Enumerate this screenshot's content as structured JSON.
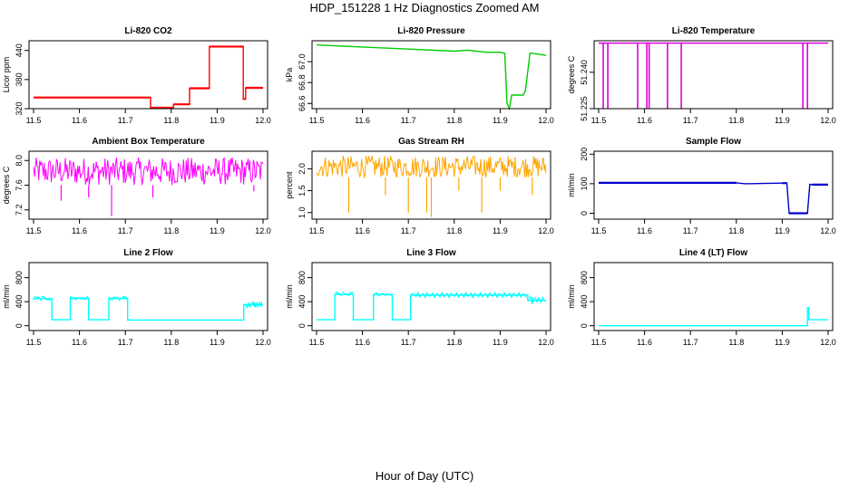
{
  "title": "HDP_151228  1 Hz Diagnostics Zoomed AM",
  "xlabel": "Hour of Day (UTC)",
  "chart_data": [
    {
      "id": "co2",
      "type": "line",
      "title": "Li-820 CO2",
      "ylabel": "Licor ppm",
      "color": "#ff0000",
      "xlim": [
        11.5,
        12.0
      ],
      "xticks": [
        11.5,
        11.6,
        11.7,
        11.8,
        11.9,
        12.0
      ],
      "xtick_labels": [
        "11.5",
        "11.6",
        "11.7",
        "11.8",
        "11.9",
        "12.0"
      ],
      "ylim": [
        320,
        460
      ],
      "yticks": [
        320,
        380,
        440
      ],
      "ytick_labels": [
        "320",
        "380",
        "440"
      ],
      "x": [
        11.5,
        11.755,
        11.755,
        11.805,
        11.805,
        11.84,
        11.84,
        11.883,
        11.883,
        11.957,
        11.957,
        11.962,
        11.962,
        12.0
      ],
      "y": [
        343,
        343,
        322,
        322,
        329,
        329,
        362,
        362,
        448,
        448,
        340,
        340,
        363,
        363
      ]
    },
    {
      "id": "pressure",
      "type": "line",
      "title": "Li-820 Pressure",
      "ylabel": "kPa",
      "color": "#00cc00",
      "xlim": [
        11.5,
        12.0
      ],
      "xticks": [
        11.5,
        11.6,
        11.7,
        11.8,
        11.9,
        12.0
      ],
      "xtick_labels": [
        "11.5",
        "11.6",
        "11.7",
        "11.8",
        "11.9",
        "12.0"
      ],
      "ylim": [
        66.55,
        67.2
      ],
      "yticks": [
        66.6,
        66.8,
        67.0
      ],
      "ytick_labels": [
        "66.6",
        "66.8",
        "67.0"
      ],
      "x": [
        11.5,
        11.55,
        11.6,
        11.7,
        11.8,
        11.83,
        11.87,
        11.9,
        11.91,
        11.915,
        11.92,
        11.925,
        11.95,
        11.955,
        11.965,
        11.97,
        12.0
      ],
      "y": [
        67.16,
        67.15,
        67.14,
        67.12,
        67.1,
        67.11,
        67.09,
        67.09,
        67.08,
        66.6,
        66.55,
        66.68,
        66.68,
        66.72,
        67.08,
        67.08,
        67.06
      ]
    },
    {
      "id": "li_temp",
      "type": "line",
      "title": "Li-820 Temperature",
      "ylabel": "degrees C",
      "color": "#dd00dd",
      "xlim": [
        11.5,
        12.0
      ],
      "xticks": [
        11.5,
        11.6,
        11.7,
        11.8,
        11.9,
        12.0
      ],
      "xtick_labels": [
        "11.5",
        "11.6",
        "11.7",
        "11.8",
        "11.9",
        "12.0"
      ],
      "ylim": [
        51.225,
        51.253
      ],
      "yticks": [
        51.225,
        51.24
      ],
      "ytick_labels": [
        "51.225",
        "51.240"
      ],
      "baseline": 51.252,
      "spikes": [
        11.51,
        11.52,
        11.585,
        11.605,
        11.61,
        11.65,
        11.68,
        11.945,
        11.955
      ]
    },
    {
      "id": "box_temp",
      "type": "noise",
      "title": "Ambient Box Temperature",
      "ylabel": "degrees C",
      "color": "#ff00ff",
      "xlim": [
        11.5,
        12.0
      ],
      "xticks": [
        11.5,
        11.6,
        11.7,
        11.8,
        11.9,
        12.0
      ],
      "xtick_labels": [
        "11.5",
        "11.6",
        "11.7",
        "11.8",
        "11.9",
        "12.0"
      ],
      "ylim": [
        7.05,
        8.15
      ],
      "yticks": [
        7.2,
        7.6,
        8.0
      ],
      "ytick_labels": [
        "7.2",
        "7.6",
        "8.0"
      ],
      "band": [
        7.6,
        8.05
      ],
      "dips": [
        [
          11.67,
          7.1
        ],
        [
          11.56,
          7.35
        ],
        [
          11.62,
          7.4
        ],
        [
          11.76,
          7.4
        ],
        [
          11.98,
          7.5
        ]
      ]
    },
    {
      "id": "rh",
      "type": "noise",
      "title": "Gas Stream RH",
      "ylabel": "percent",
      "color": "#ffa500",
      "xlim": [
        11.5,
        12.0
      ],
      "xticks": [
        11.5,
        11.6,
        11.7,
        11.8,
        11.9,
        12.0
      ],
      "xtick_labels": [
        "11.5",
        "11.6",
        "11.7",
        "11.8",
        "11.9",
        "12.0"
      ],
      "ylim": [
        0.85,
        2.4
      ],
      "yticks": [
        1.0,
        1.5,
        2.0
      ],
      "ytick_labels": [
        "1.0",
        "1.5",
        "2.0"
      ],
      "band": [
        1.8,
        2.3
      ],
      "dips": [
        [
          11.57,
          1.0
        ],
        [
          11.65,
          1.4
        ],
        [
          11.7,
          1.0
        ],
        [
          11.74,
          1.0
        ],
        [
          11.75,
          0.9
        ],
        [
          11.81,
          1.5
        ],
        [
          11.86,
          1.0
        ],
        [
          11.9,
          1.5
        ],
        [
          11.97,
          1.4
        ]
      ]
    },
    {
      "id": "sample_flow",
      "type": "line",
      "title": "Sample Flow",
      "ylabel": "ml/min",
      "color": "#0000cc",
      "xlim": [
        11.5,
        12.0
      ],
      "xticks": [
        11.5,
        11.6,
        11.7,
        11.8,
        11.9,
        12.0
      ],
      "xtick_labels": [
        "11.5",
        "11.6",
        "11.7",
        "11.8",
        "11.9",
        "12.0"
      ],
      "ylim": [
        -20,
        210
      ],
      "yticks": [
        0,
        100,
        200
      ],
      "ytick_labels": [
        "0",
        "100",
        "200"
      ],
      "x": [
        11.5,
        11.8,
        11.82,
        11.9,
        11.91,
        11.915,
        11.955,
        11.96,
        11.965,
        12.0
      ],
      "y": [
        103,
        103,
        100,
        102,
        102,
        0,
        0,
        98,
        97,
        97
      ]
    },
    {
      "id": "line2",
      "type": "line",
      "title": "Line 2 Flow",
      "ylabel": "ml/min",
      "color": "#00ffff",
      "xlim": [
        11.5,
        12.0
      ],
      "xticks": [
        11.5,
        11.6,
        11.7,
        11.8,
        11.9,
        12.0
      ],
      "xtick_labels": [
        "11.5",
        "11.6",
        "11.7",
        "11.8",
        "11.9",
        "12.0"
      ],
      "ylim": [
        -80,
        1050
      ],
      "yticks": [
        0,
        400,
        800
      ],
      "ytick_labels": [
        "0",
        "400",
        "800"
      ],
      "x": [
        11.5,
        11.54,
        11.54,
        11.58,
        11.58,
        11.62,
        11.62,
        11.664,
        11.664,
        11.705,
        11.705,
        11.958,
        11.958,
        12.0
      ],
      "y": [
        450,
        450,
        100,
        100,
        460,
        460,
        100,
        100,
        455,
        455,
        95,
        95,
        350,
        350
      ]
    },
    {
      "id": "line3",
      "type": "line",
      "title": "Line 3 Flow",
      "ylabel": "ml/min",
      "color": "#00ffff",
      "xlim": [
        11.5,
        12.0
      ],
      "xticks": [
        11.5,
        11.6,
        11.7,
        11.8,
        11.9,
        12.0
      ],
      "xtick_labels": [
        "11.5",
        "11.6",
        "11.7",
        "11.8",
        "11.9",
        "12.0"
      ],
      "ylim": [
        -80,
        1050
      ],
      "yticks": [
        0,
        400,
        800
      ],
      "ytick_labels": [
        "0",
        "400",
        "800"
      ],
      "x": [
        11.5,
        11.54,
        11.54,
        11.58,
        11.58,
        11.624,
        11.624,
        11.665,
        11.665,
        11.705,
        11.705,
        11.96,
        11.96,
        12.0
      ],
      "y": [
        100,
        100,
        520,
        520,
        100,
        100,
        520,
        520,
        100,
        100,
        510,
        510,
        420,
        420
      ]
    },
    {
      "id": "line4",
      "type": "line",
      "title": "Line 4 (LT) Flow",
      "ylabel": "ml/min",
      "color": "#00ffff",
      "xlim": [
        11.5,
        12.0
      ],
      "xticks": [
        11.5,
        11.6,
        11.7,
        11.8,
        11.9,
        12.0
      ],
      "xtick_labels": [
        "11.5",
        "11.6",
        "11.7",
        "11.8",
        "11.9",
        "12.0"
      ],
      "ylim": [
        -80,
        1050
      ],
      "yticks": [
        0,
        400,
        800
      ],
      "ytick_labels": [
        "0",
        "400",
        "800"
      ],
      "x": [
        11.5,
        11.955,
        11.955,
        11.958,
        11.958,
        12.0
      ],
      "y": [
        0,
        0,
        300,
        300,
        100,
        100
      ]
    }
  ]
}
